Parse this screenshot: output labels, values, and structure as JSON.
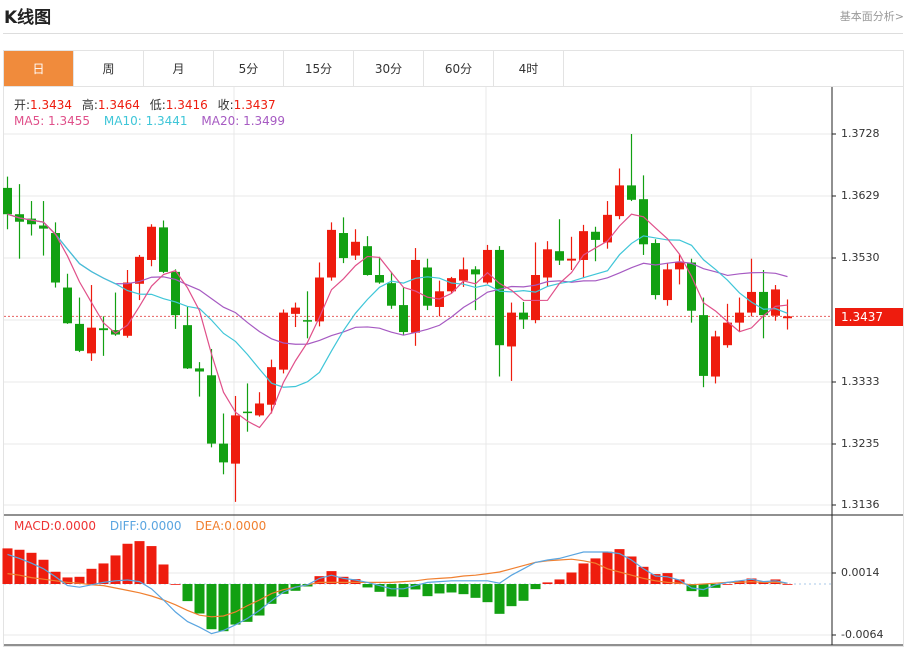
{
  "header": {
    "title": "K线图",
    "link": "基本面分析>"
  },
  "tabs": [
    {
      "label": "日",
      "active": true
    },
    {
      "label": "周"
    },
    {
      "label": "月"
    },
    {
      "label": "5分"
    },
    {
      "label": "15分"
    },
    {
      "label": "30分"
    },
    {
      "label": "60分"
    },
    {
      "label": "4时"
    }
  ],
  "ohlc_info": {
    "open_label": "开:",
    "open": "1.3434",
    "high_label": "高:",
    "high": "1.3464",
    "low_label": "低:",
    "low": "1.3416",
    "close_label": "收:",
    "close": "1.3437"
  },
  "ma_info": {
    "ma5": "MA5: 1.3455",
    "ma10": "MA10: 1.3441",
    "ma20": "MA20: 1.3499"
  },
  "macd_info": {
    "macd": "MACD:0.0000",
    "diff": "DIFF:0.0000",
    "dea": "DEA:0.0000"
  },
  "price_axis": [
    "1.3728",
    "1.3629",
    "1.3530",
    "1.3333",
    "1.3235",
    "1.3136"
  ],
  "current_price": "1.3437",
  "macd_axis": [
    "0.0014",
    "-0.0064"
  ],
  "colors": {
    "up": "#ee1c0e",
    "down": "#12a012",
    "ma5": "#e0508a",
    "ma10": "#3fc6d8",
    "ma20": "#a65ac2",
    "diff": "#5aa5e0",
    "dea": "#f08030",
    "active_tab": "#f08b3c"
  },
  "chart_data": [
    {
      "type": "candlestick",
      "ylim": [
        1.3136,
        1.3728
      ],
      "grid": true,
      "candles_ohlc": [
        [
          1.3642,
          1.366,
          1.3576,
          1.36
        ],
        [
          1.36,
          1.3648,
          1.3529,
          1.3588
        ],
        [
          1.3593,
          1.3621,
          1.3566,
          1.3584
        ],
        [
          1.3582,
          1.3621,
          1.3534,
          1.3577
        ],
        [
          1.357,
          1.3587,
          1.3483,
          1.3491
        ],
        [
          1.3483,
          1.3505,
          1.3425,
          1.3426
        ],
        [
          1.3425,
          1.3467,
          1.338,
          1.3382
        ],
        [
          1.3378,
          1.3487,
          1.3366,
          1.3419
        ],
        [
          1.3418,
          1.3437,
          1.3374,
          1.3415
        ],
        [
          1.3415,
          1.3475,
          1.3406,
          1.3408
        ],
        [
          1.3406,
          1.3511,
          1.3403,
          1.3491
        ],
        [
          1.3489,
          1.3535,
          1.3463,
          1.3532
        ],
        [
          1.3527,
          1.3584,
          1.3517,
          1.358
        ],
        [
          1.3579,
          1.359,
          1.3506,
          1.3508
        ],
        [
          1.3508,
          1.3512,
          1.3417,
          1.3439
        ],
        [
          1.3423,
          1.3452,
          1.3353,
          1.3354
        ],
        [
          1.3354,
          1.3364,
          1.3309,
          1.3349
        ],
        [
          1.3343,
          1.3385,
          1.3228,
          1.3234
        ],
        [
          1.3234,
          1.3282,
          1.3185,
          1.3204
        ],
        [
          1.3202,
          1.331,
          1.3141,
          1.3279
        ],
        [
          1.3285,
          1.333,
          1.3253,
          1.3283
        ],
        [
          1.3279,
          1.3316,
          1.3277,
          1.3298
        ],
        [
          1.3296,
          1.3368,
          1.3282,
          1.3356
        ],
        [
          1.3352,
          1.3448,
          1.3346,
          1.3443
        ],
        [
          1.3441,
          1.3459,
          1.342,
          1.3451
        ],
        [
          1.3431,
          1.3477,
          1.3402,
          1.343
        ],
        [
          1.3429,
          1.3523,
          1.3421,
          1.3499
        ],
        [
          1.3499,
          1.3587,
          1.3494,
          1.3575
        ],
        [
          1.357,
          1.3595,
          1.3522,
          1.353
        ],
        [
          1.3534,
          1.3576,
          1.3527,
          1.3556
        ],
        [
          1.3549,
          1.3565,
          1.3502,
          1.3503
        ],
        [
          1.3503,
          1.3532,
          1.3489,
          1.3491
        ],
        [
          1.349,
          1.3508,
          1.3449,
          1.3454
        ],
        [
          1.3455,
          1.3483,
          1.3407,
          1.3412
        ],
        [
          1.3411,
          1.3546,
          1.339,
          1.3527
        ],
        [
          1.3515,
          1.3529,
          1.3447,
          1.3454
        ],
        [
          1.3452,
          1.3494,
          1.3437,
          1.3477
        ],
        [
          1.3477,
          1.35,
          1.3474,
          1.3498
        ],
        [
          1.3494,
          1.3531,
          1.3484,
          1.3512
        ],
        [
          1.3512,
          1.3517,
          1.3447,
          1.3504
        ],
        [
          1.3491,
          1.3551,
          1.3489,
          1.3543
        ],
        [
          1.3543,
          1.3549,
          1.3341,
          1.3391
        ],
        [
          1.3389,
          1.3459,
          1.3334,
          1.3443
        ],
        [
          1.3443,
          1.346,
          1.3417,
          1.3432
        ],
        [
          1.3431,
          1.3555,
          1.3426,
          1.3503
        ],
        [
          1.3499,
          1.3557,
          1.3484,
          1.3544
        ],
        [
          1.3541,
          1.3592,
          1.3519,
          1.3526
        ],
        [
          1.3526,
          1.3564,
          1.3511,
          1.3529
        ],
        [
          1.3527,
          1.3583,
          1.3498,
          1.3573
        ],
        [
          1.3572,
          1.358,
          1.3525,
          1.3559
        ],
        [
          1.3555,
          1.3621,
          1.3545,
          1.3599
        ],
        [
          1.3597,
          1.3673,
          1.3592,
          1.3646
        ],
        [
          1.3646,
          1.3728,
          1.3621,
          1.3623
        ],
        [
          1.3624,
          1.3662,
          1.3535,
          1.3552
        ],
        [
          1.3554,
          1.356,
          1.3464,
          1.3471
        ],
        [
          1.3463,
          1.3522,
          1.3454,
          1.3512
        ],
        [
          1.3512,
          1.3536,
          1.3488,
          1.3523
        ],
        [
          1.3523,
          1.3529,
          1.3427,
          1.3446
        ],
        [
          1.3439,
          1.3467,
          1.3324,
          1.3342
        ],
        [
          1.3341,
          1.3414,
          1.333,
          1.3405
        ],
        [
          1.3391,
          1.3457,
          1.3387,
          1.3427
        ],
        [
          1.3427,
          1.3467,
          1.3412,
          1.3443
        ],
        [
          1.3443,
          1.3529,
          1.3437,
          1.3476
        ],
        [
          1.3476,
          1.3511,
          1.3402,
          1.3439
        ],
        [
          1.3438,
          1.3487,
          1.343,
          1.348
        ],
        [
          1.3434,
          1.3464,
          1.3416,
          1.3437
        ]
      ],
      "moving_averages": [
        5,
        10,
        20
      ]
    },
    {
      "type": "bar",
      "ylim": [
        -0.0064,
        0.0014
      ],
      "macd": [
        0.00445,
        0.00428,
        0.0039,
        0.00303,
        0.00153,
        0.00082,
        0.0009,
        0.0019,
        0.00257,
        0.00357,
        0.00503,
        0.00536,
        0.00474,
        0.00244,
        0.0,
        -0.00214,
        -0.00369,
        -0.00565,
        -0.0059,
        -0.00507,
        -0.00473,
        -0.00394,
        -0.00248,
        -0.00123,
        -0.00085,
        -0.00031,
        0.00098,
        0.00161,
        0.0009,
        0.00061,
        -0.00043,
        -0.00098,
        -0.00156,
        -0.00164,
        -0.00068,
        -0.00152,
        -0.00118,
        -0.00106,
        -0.00127,
        -0.00173,
        -0.00227,
        -0.00373,
        -0.00277,
        -0.0021,
        -0.00064,
        0.0002,
        0.00057,
        0.00144,
        0.00257,
        0.0032,
        0.00403,
        0.00436,
        0.00344,
        0.00215,
        0.00124,
        0.00136,
        0.00057,
        -0.00089,
        -0.0016,
        -0.00048,
        0.0,
        0.0004,
        0.00069,
        0.0003,
        0.00057,
        0.0
      ],
      "diff": [
        0.0037,
        0.0032,
        0.0026,
        0.0019,
        0.0009,
        -0.0002,
        -0.0004,
        -0.0001,
        0.0002,
        0.0004,
        0.0005,
        0.0003,
        -0.0006,
        -0.002,
        -0.0035,
        -0.0047,
        -0.0054,
        -0.0062,
        -0.0058,
        -0.0051,
        -0.0043,
        -0.0033,
        -0.0021,
        -0.001,
        -0.0004,
        -0.0001,
        0.0007,
        0.0011,
        0.0007,
        0.0005,
        0.0002,
        -0.0002,
        -0.0006,
        -0.0006,
        -0.0002,
        0.0002,
        0.0003,
        0.0004,
        0.0004,
        0.0004,
        0.0004,
        0.0001,
        0.0011,
        0.0019,
        0.0027,
        0.003,
        0.0032,
        0.0036,
        0.004,
        0.004,
        0.004,
        0.0038,
        0.003,
        0.0019,
        0.001,
        0.0009,
        0.0005,
        -0.0005,
        -0.0007,
        -0.0001,
        0.0002,
        0.0004,
        0.0006,
        0.0003,
        0.0004,
        0.0001
      ],
      "dea": [
        0.0013,
        0.0011,
        0.0008,
        0.0006,
        0.0004,
        0.0002,
        0.0001,
        -0.0001,
        -0.0002,
        -0.0005,
        -0.0008,
        -0.0011,
        -0.0015,
        -0.002,
        -0.0026,
        -0.0033,
        -0.0039,
        -0.0041,
        -0.004,
        -0.0035,
        -0.0027,
        -0.002,
        -0.0012,
        -0.0007,
        -0.0004,
        -0.0001,
        0.0002,
        0.0002,
        0.0002,
        0.0002,
        0.0002,
        0.0002,
        0.0002,
        0.0003,
        0.0004,
        0.0006,
        0.0007,
        0.0008,
        0.001,
        0.0011,
        0.0013,
        0.0015,
        0.0019,
        0.0023,
        0.0027,
        0.0029,
        0.003,
        0.0031,
        0.0029,
        0.0026,
        0.0019,
        0.0015,
        0.0011,
        0.0007,
        0.0004,
        0.0002,
        0.0001,
        -0.0001,
        0.0,
        0.0001,
        0.0002,
        0.0002,
        0.0003,
        0.0002,
        0.0002,
        0.0001
      ]
    }
  ]
}
